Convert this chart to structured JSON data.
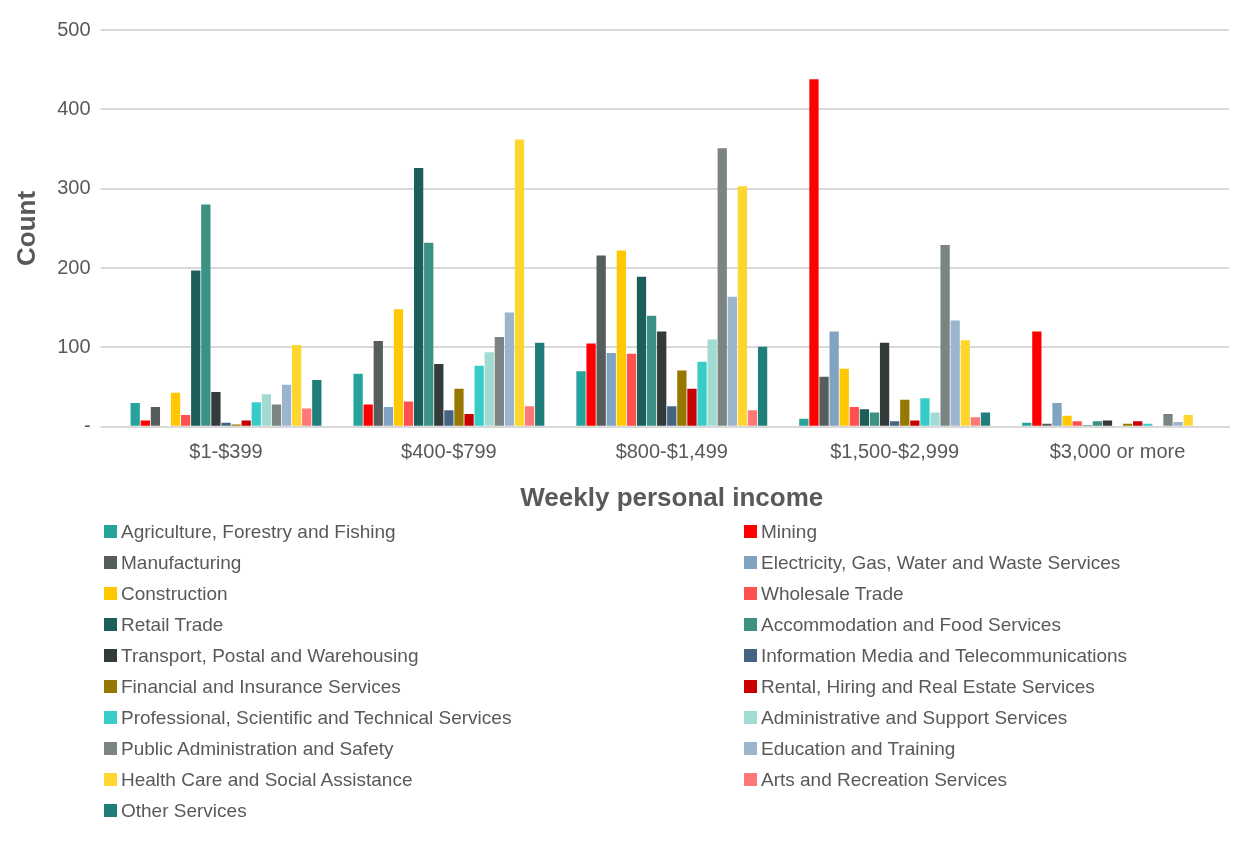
{
  "chart_data": {
    "type": "bar",
    "xlabel": "Weekly personal income",
    "ylabel": "Count",
    "categories": [
      "$1-$399",
      "$400-$799",
      "$800-$1,499",
      "$1,500-$2,999",
      "$3,000 or more"
    ],
    "ylim": [
      0,
      500
    ],
    "yticks": [
      {
        "value": 0,
        "label": "-"
      },
      100,
      200,
      300,
      400,
      500
    ],
    "grid": "y",
    "legend": "bottom",
    "series": [
      {
        "name": "Agriculture, Forestry and Fishing",
        "color": "#26a39a",
        "values": [
          30,
          67,
          70,
          10,
          5
        ]
      },
      {
        "name": "Mining",
        "color": "#ff0000",
        "values": [
          8,
          28,
          105,
          438,
          120
        ]
      },
      {
        "name": "Manufacturing",
        "color": "#555e5c",
        "values": [
          25,
          108,
          216,
          63,
          4
        ]
      },
      {
        "name": "Electricity, Gas, Water and Waste Services",
        "color": "#7fa3c0",
        "values": [
          0,
          25,
          93,
          120,
          30
        ]
      },
      {
        "name": "Construction",
        "color": "#ffc800",
        "values": [
          43,
          148,
          222,
          73,
          14
        ]
      },
      {
        "name": "Wholesale Trade",
        "color": "#ff5050",
        "values": [
          15,
          32,
          92,
          25,
          7
        ]
      },
      {
        "name": "Retail Trade",
        "color": "#1b5e5a",
        "values": [
          197,
          326,
          189,
          22,
          2
        ]
      },
      {
        "name": "Accommodation and Food Services",
        "color": "#3c9282",
        "values": [
          280,
          232,
          140,
          18,
          7
        ]
      },
      {
        "name": "Transport, Postal and Warehousing",
        "color": "#333a3a",
        "values": [
          44,
          79,
          120,
          106,
          8
        ]
      },
      {
        "name": "Information Media and Telecommunications",
        "color": "#456484",
        "values": [
          5,
          21,
          26,
          7,
          0
        ]
      },
      {
        "name": "Financial and Insurance Services",
        "color": "#967800",
        "values": [
          3,
          48,
          71,
          34,
          4
        ]
      },
      {
        "name": "Rental, Hiring and Real Estate Services",
        "color": "#c80000",
        "values": [
          8,
          16,
          48,
          8,
          7
        ]
      },
      {
        "name": "Professional, Scientific and Technical Services",
        "color": "#38ccc8",
        "values": [
          31,
          77,
          82,
          36,
          4
        ]
      },
      {
        "name": "Administrative and Support Services",
        "color": "#a2dbd2",
        "values": [
          41,
          94,
          110,
          18,
          0
        ]
      },
      {
        "name": "Public Administration and Safety",
        "color": "#798483",
        "values": [
          28,
          113,
          351,
          229,
          16
        ]
      },
      {
        "name": "Education and Training",
        "color": "#9bb6cc",
        "values": [
          53,
          144,
          164,
          134,
          6
        ]
      },
      {
        "name": "Health Care and Social Assistance",
        "color": "#ffd530",
        "values": [
          103,
          362,
          303,
          109,
          15
        ]
      },
      {
        "name": "Arts and Recreation Services",
        "color": "#ff7878",
        "values": [
          23,
          26,
          21,
          12,
          0
        ]
      },
      {
        "name": "Other Services",
        "color": "#1f7d7a",
        "values": [
          59,
          106,
          101,
          18,
          0
        ]
      }
    ]
  }
}
